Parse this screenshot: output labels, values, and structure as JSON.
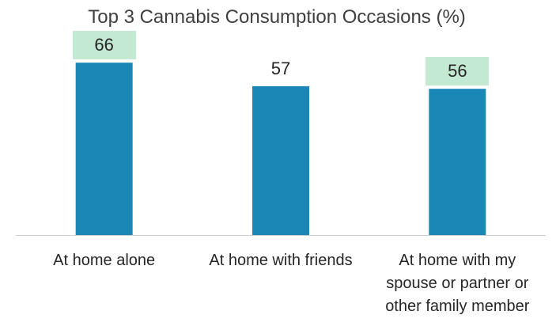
{
  "chart_data": {
    "type": "bar",
    "title": "Top 3 Cannabis Consumption Occasions (%)",
    "categories": [
      [
        "At home alone"
      ],
      [
        "At home with friends"
      ],
      [
        "At home with my",
        "spouse or partner or",
        "other family member"
      ]
    ],
    "values": [
      66,
      57,
      56
    ],
    "highlighted": [
      true,
      false,
      true
    ],
    "ylim": [
      0,
      70
    ],
    "grid": false,
    "legend": "none",
    "colors": {
      "bar": "#1b87b6",
      "highlight": "#c3e9d3",
      "axis": "#d0d0d0",
      "text": "#262626",
      "title": "#404040"
    }
  }
}
